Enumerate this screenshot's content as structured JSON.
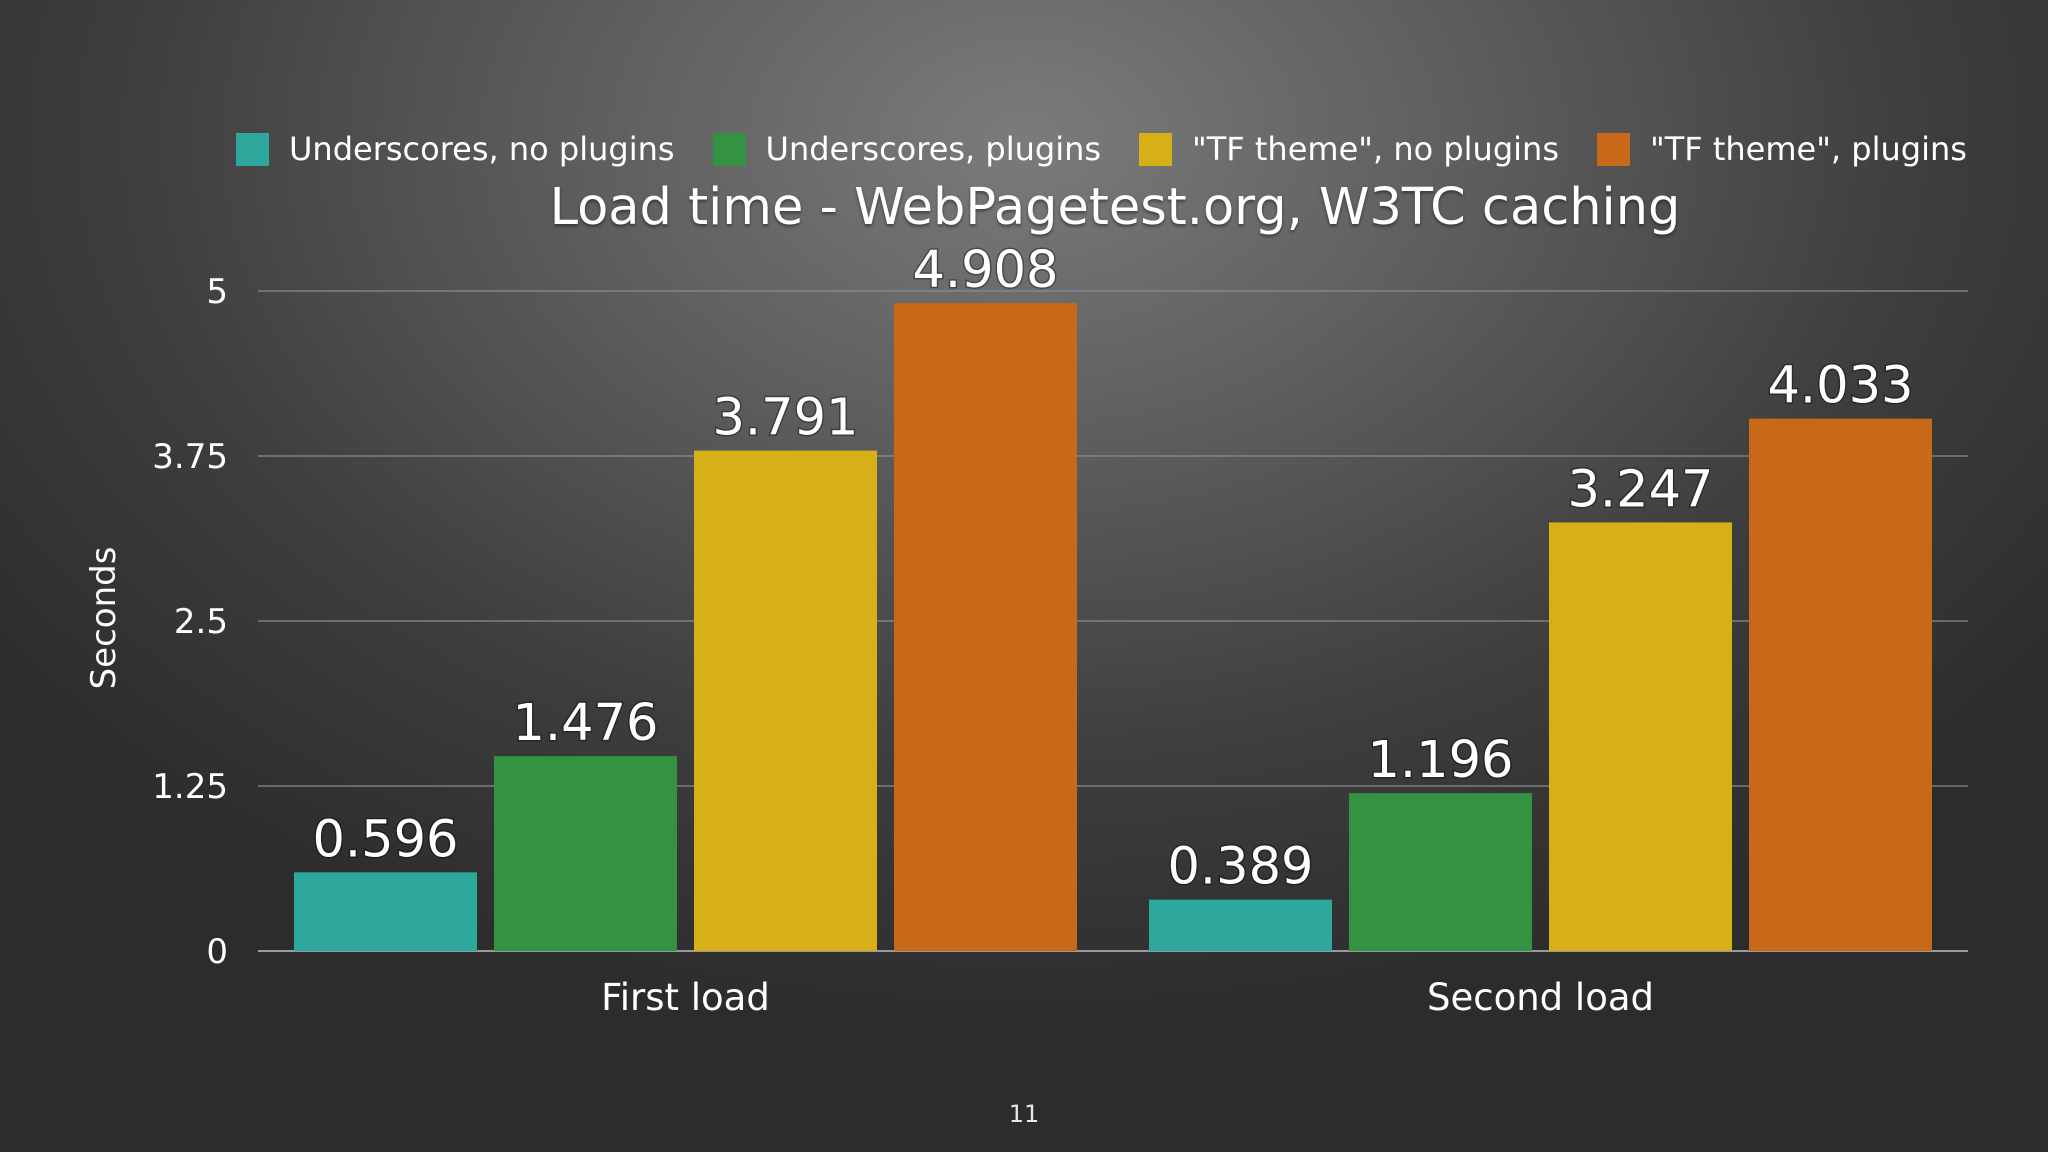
{
  "page_number": "11",
  "chart_data": {
    "type": "bar",
    "title": "Load time - WebPagetest.org, W3TC caching",
    "xlabel": "",
    "ylabel": "Seconds",
    "ylim": [
      0,
      5
    ],
    "yticks": [
      "0",
      "1.25",
      "2.5",
      "3.75",
      "5"
    ],
    "grid": true,
    "legend_position": "top",
    "categories": [
      "First load",
      "Second load"
    ],
    "series": [
      {
        "name": "Underscores, no plugins",
        "color": "#2ea89c",
        "values": [
          0.596,
          0.389
        ],
        "labels": [
          "0.596",
          "0.389"
        ]
      },
      {
        "name": "Underscores, plugins",
        "color": "#339342",
        "values": [
          1.476,
          1.196
        ],
        "labels": [
          "1.476",
          "1.196"
        ]
      },
      {
        "name": "\"TF theme\", no plugins",
        "color": "#d6b016",
        "values": [
          3.791,
          3.247
        ],
        "labels": [
          "3.791",
          "3.247"
        ]
      },
      {
        "name": "\"TF theme\", plugins",
        "color": "#c76918",
        "values": [
          4.908,
          4.033
        ],
        "labels": [
          "4.908",
          "4.033"
        ]
      }
    ]
  }
}
